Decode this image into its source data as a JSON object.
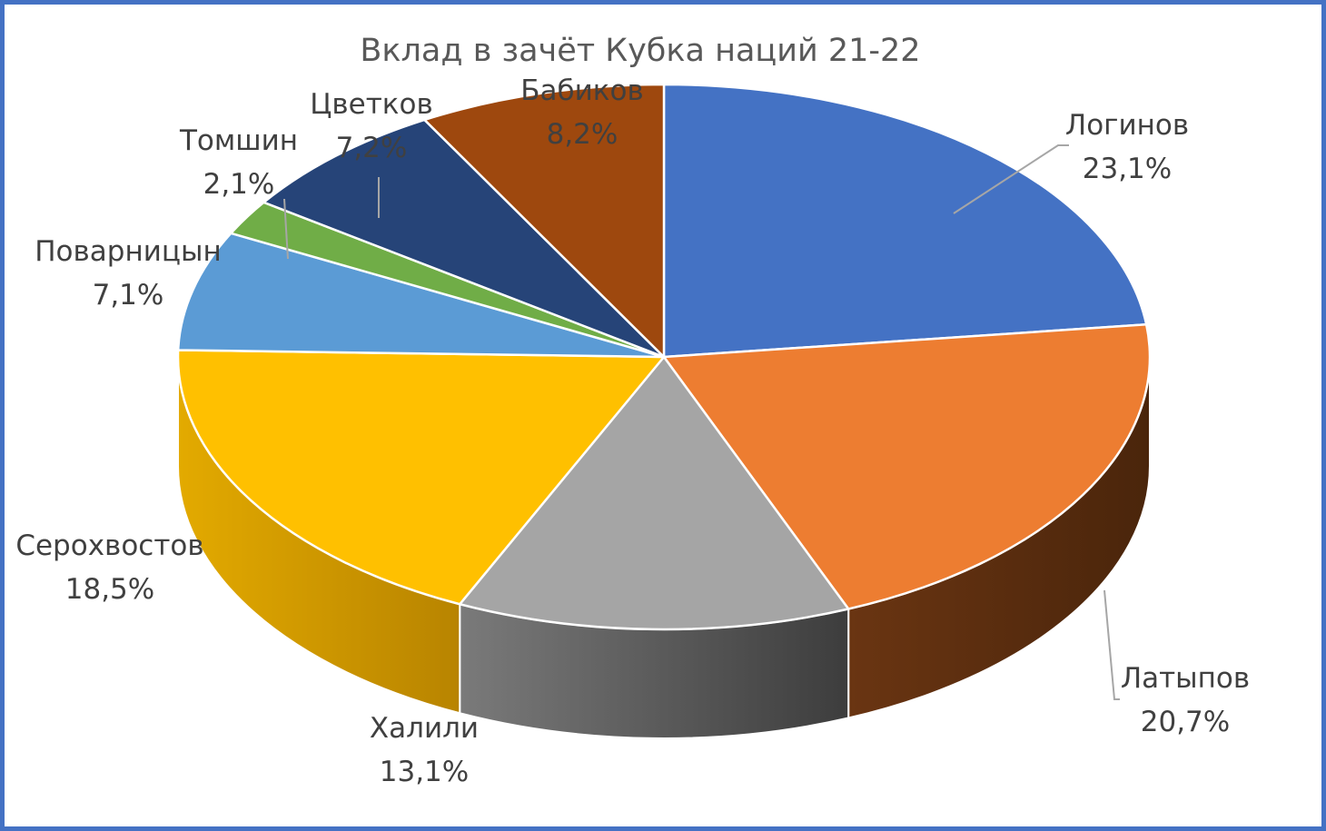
{
  "chart_data": {
    "type": "pie",
    "title": "Вклад в зачёт Кубка наций 21-22",
    "slices": [
      {
        "name": "Логинов",
        "value": 23.1,
        "label": "23,1%",
        "color": "#4472c4",
        "side": "#2e4f8c"
      },
      {
        "name": "Латыпов",
        "value": 20.7,
        "label": "20,7%",
        "color": "#ed7d31",
        "side": "#5e2f10"
      },
      {
        "name": "Халили",
        "value": 13.1,
        "label": "13,1%",
        "color": "#a5a5a5",
        "side": "#4f4f4f"
      },
      {
        "name": "Серохвостов",
        "value": 18.5,
        "label": "18,5%",
        "color": "#ffc000",
        "side": "#c99400"
      },
      {
        "name": "Поварницын",
        "value": 7.1,
        "label": "7,1%",
        "color": "#5b9bd5",
        "side": "#3a6fa0"
      },
      {
        "name": "Томшин",
        "value": 2.1,
        "label": "2,1%",
        "color": "#70ad47",
        "side": "#4e7a30"
      },
      {
        "name": "Цветков",
        "value": 7.2,
        "label": "7,2%",
        "color": "#264478",
        "side": "#17294a"
      },
      {
        "name": "Бабиков",
        "value": 8.2,
        "label": "8,2%",
        "color": "#9e480e",
        "side": "#5e2a08"
      }
    ]
  }
}
